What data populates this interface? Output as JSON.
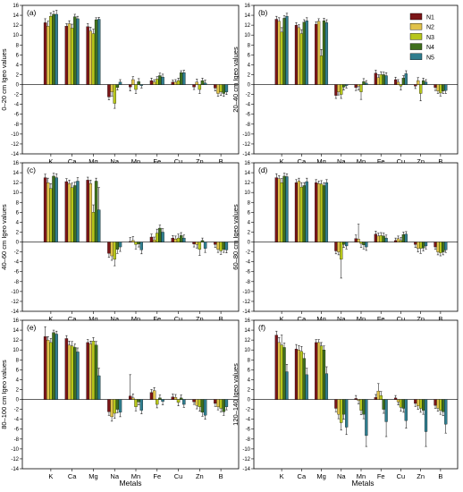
{
  "figure": {
    "xlabel_left": "Metals",
    "xlabel_right": "Metals"
  },
  "legend": {
    "entries": [
      {
        "name": "N1",
        "color": "#7b1518"
      },
      {
        "name": "N2",
        "color": "#e0c24a"
      },
      {
        "name": "N3",
        "color": "#b7c61b"
      },
      {
        "name": "N4",
        "color": "#3f6f1d"
      },
      {
        "name": "N5",
        "color": "#2f7d8e"
      }
    ]
  },
  "chart_data": [
    {
      "type": "bar",
      "panel": "(a)",
      "ylabel": "0–20 cm Igeo values",
      "categories": [
        "K",
        "Ca",
        "Mg",
        "Na",
        "Mn",
        "Fe",
        "Cu",
        "Zn",
        "B"
      ],
      "ylim": [
        -14,
        16
      ],
      "yticks": [
        -14,
        -12,
        -10,
        -8,
        -6,
        -4,
        -2,
        0,
        2,
        4,
        6,
        8,
        10,
        12,
        14,
        16
      ],
      "series": [
        {
          "name": "N1",
          "values": [
            12.5,
            11.8,
            11.7,
            -2.5,
            -0.5,
            0.8,
            0.5,
            -0.5,
            -0.7
          ],
          "errors": [
            0.8,
            0.5,
            0.6,
            0.6,
            0.8,
            0.5,
            0.4,
            0.5,
            0.6
          ]
        },
        {
          "name": "N2",
          "values": [
            11.8,
            12.3,
            10.8,
            -1.5,
            1.0,
            0.5,
            0.5,
            0.5,
            -1.8
          ],
          "errors": [
            1.0,
            0.6,
            0.8,
            0.8,
            0.6,
            0.5,
            0.5,
            0.6,
            0.6
          ]
        },
        {
          "name": "N3",
          "values": [
            13.8,
            11.4,
            10.3,
            -3.8,
            -1.0,
            1.1,
            0.8,
            -1.0,
            -1.5
          ],
          "errors": [
            0.7,
            0.8,
            0.9,
            1.0,
            0.8,
            0.5,
            0.5,
            0.8,
            0.7
          ]
        },
        {
          "name": "N4",
          "values": [
            14.2,
            13.7,
            13.1,
            -0.6,
            0.6,
            1.8,
            2.4,
            0.8,
            -1.8
          ],
          "errors": [
            0.6,
            0.5,
            0.4,
            0.5,
            0.6,
            0.5,
            0.4,
            0.5,
            0.6
          ]
        },
        {
          "name": "N5",
          "values": [
            14.2,
            13.3,
            13.2,
            0.5,
            -0.2,
            1.5,
            2.4,
            0.3,
            -1.5
          ],
          "errors": [
            0.8,
            0.5,
            0.4,
            0.5,
            0.5,
            0.6,
            0.5,
            0.6,
            0.5
          ]
        }
      ]
    },
    {
      "type": "bar",
      "panel": "(b)",
      "ylabel": "20–40 cm Igeo values",
      "categories": [
        "K",
        "Ca",
        "Mg",
        "Na",
        "Mn",
        "Fe",
        "Cu",
        "Zn",
        "B"
      ],
      "ylim": [
        -14,
        16
      ],
      "yticks": [
        -14,
        -12,
        -10,
        -8,
        -6,
        -4,
        -2,
        0,
        2,
        4,
        6,
        8,
        10,
        12,
        14,
        16
      ],
      "series": [
        {
          "name": "N1",
          "values": [
            13.2,
            12.0,
            12.2,
            -2.2,
            -0.6,
            2.3,
            1.0,
            -0.3,
            -0.6
          ],
          "errors": [
            0.6,
            0.5,
            0.5,
            0.6,
            0.6,
            0.6,
            0.5,
            0.5,
            0.6
          ]
        },
        {
          "name": "N2",
          "values": [
            12.8,
            11.5,
            12.8,
            -1.5,
            -0.3,
            1.4,
            0.5,
            0.8,
            -1.3
          ],
          "errors": [
            0.7,
            0.6,
            0.5,
            0.6,
            0.8,
            0.6,
            0.5,
            0.6,
            0.5
          ]
        },
        {
          "name": "N3",
          "values": [
            10.6,
            10.3,
            5.8,
            -2.0,
            -1.5,
            2.0,
            -0.3,
            -1.8,
            -1.7
          ],
          "errors": [
            0.9,
            0.8,
            1.3,
            0.8,
            1.5,
            0.6,
            0.8,
            1.5,
            0.6
          ]
        },
        {
          "name": "N4",
          "values": [
            13.4,
            12.6,
            12.9,
            -0.5,
            0.6,
            2.0,
            1.3,
            0.8,
            -1.3
          ],
          "errors": [
            0.5,
            0.5,
            0.5,
            0.6,
            0.6,
            0.5,
            0.5,
            0.5,
            0.5
          ]
        },
        {
          "name": "N5",
          "values": [
            13.8,
            12.9,
            12.5,
            -0.2,
            0.3,
            1.8,
            2.2,
            0.5,
            -1.2
          ],
          "errors": [
            0.6,
            0.6,
            0.6,
            0.5,
            0.5,
            0.6,
            0.6,
            0.5,
            0.6
          ]
        }
      ]
    },
    {
      "type": "bar",
      "panel": "(c)",
      "ylabel": "40–60 cm Igeo values",
      "categories": [
        "K",
        "Ca",
        "Mg",
        "Na",
        "Mn",
        "Fe",
        "Cu",
        "Zn",
        "B"
      ],
      "ylim": [
        -14,
        16
      ],
      "yticks": [
        -14,
        -12,
        -10,
        -8,
        -6,
        -4,
        -2,
        0,
        2,
        4,
        6,
        8,
        10,
        12,
        14,
        16
      ],
      "series": [
        {
          "name": "N1",
          "values": [
            13.0,
            12.2,
            12.5,
            -2.3,
            0.1,
            1.0,
            0.8,
            -0.4,
            -0.5
          ],
          "errors": [
            0.7,
            0.6,
            0.6,
            0.8,
            0.8,
            0.6,
            0.5,
            0.6,
            0.6
          ]
        },
        {
          "name": "N2",
          "values": [
            12.0,
            11.8,
            11.8,
            -2.8,
            0.3,
            0.4,
            0.6,
            -0.5,
            -1.5
          ],
          "errors": [
            0.9,
            0.7,
            0.7,
            0.9,
            0.8,
            0.6,
            0.6,
            0.7,
            0.6
          ]
        },
        {
          "name": "N3",
          "values": [
            10.8,
            11.0,
            6.0,
            -3.5,
            -0.5,
            1.8,
            0.8,
            -1.5,
            -1.8
          ],
          "errors": [
            1.0,
            0.9,
            1.5,
            1.3,
            0.9,
            0.8,
            0.8,
            1.2,
            0.7
          ]
        },
        {
          "name": "N4",
          "values": [
            13.3,
            11.4,
            12.3,
            -1.5,
            -0.4,
            2.8,
            1.3,
            0.3,
            -1.5
          ],
          "errors": [
            0.6,
            0.7,
            0.6,
            0.8,
            0.6,
            0.6,
            0.6,
            0.5,
            0.6
          ]
        },
        {
          "name": "N5",
          "values": [
            13.0,
            12.3,
            6.5,
            -1.0,
            -1.6,
            2.0,
            0.8,
            -1.3,
            -1.6
          ],
          "errors": [
            0.8,
            0.7,
            4.5,
            0.9,
            0.8,
            0.7,
            0.6,
            0.8,
            0.6
          ]
        }
      ]
    },
    {
      "type": "bar",
      "panel": "(d)",
      "ylabel": "60–80 cm Igeo values",
      "categories": [
        "K",
        "Ca",
        "Mg",
        "Na",
        "Mn",
        "Fe",
        "Cu",
        "Zn",
        "B"
      ],
      "ylim": [
        -14,
        16
      ],
      "yticks": [
        -14,
        -12,
        -10,
        -8,
        -6,
        -4,
        -2,
        0,
        2,
        4,
        6,
        8,
        10,
        12,
        14,
        16
      ],
      "series": [
        {
          "name": "N1",
          "values": [
            13.0,
            12.0,
            12.0,
            -1.8,
            0.7,
            1.6,
            0.3,
            -0.5,
            -1.0
          ],
          "errors": [
            0.8,
            0.6,
            0.6,
            0.6,
            0.7,
            0.6,
            0.5,
            0.6,
            0.5
          ]
        },
        {
          "name": "N2",
          "values": [
            12.8,
            12.3,
            11.8,
            -2.0,
            0.6,
            1.2,
            0.7,
            -1.3,
            -2.0
          ],
          "errors": [
            0.6,
            0.6,
            0.5,
            0.6,
            3.0,
            0.6,
            0.5,
            0.7,
            0.6
          ]
        },
        {
          "name": "N3",
          "values": [
            12.0,
            11.1,
            11.7,
            -3.5,
            -0.3,
            1.3,
            0.3,
            -1.3,
            -2.2
          ],
          "errors": [
            0.8,
            0.9,
            0.7,
            3.8,
            0.8,
            0.6,
            0.6,
            1.0,
            0.6
          ]
        },
        {
          "name": "N4",
          "values": [
            13.3,
            11.4,
            11.4,
            -0.5,
            -0.6,
            1.2,
            1.5,
            -1.2,
            -2.0
          ],
          "errors": [
            0.6,
            0.6,
            0.6,
            0.6,
            0.8,
            0.6,
            0.5,
            0.6,
            0.6
          ]
        },
        {
          "name": "N5",
          "values": [
            13.2,
            12.2,
            12.0,
            -0.8,
            -1.0,
            0.8,
            1.6,
            -0.8,
            -1.6
          ],
          "errors": [
            0.6,
            0.7,
            0.6,
            0.6,
            0.7,
            0.6,
            0.5,
            0.6,
            0.5
          ]
        }
      ]
    },
    {
      "type": "bar",
      "panel": "(e)",
      "ylabel": "80–100 cm Igeo values",
      "categories": [
        "K",
        "Ca",
        "Mg",
        "Na",
        "Mn",
        "Fe",
        "Cu",
        "Zn",
        "B"
      ],
      "ylim": [
        -14,
        16
      ],
      "yticks": [
        -14,
        -12,
        -10,
        -8,
        -6,
        -4,
        -2,
        0,
        2,
        4,
        6,
        8,
        10,
        12,
        14,
        16
      ],
      "series": [
        {
          "name": "N1",
          "values": [
            12.7,
            12.3,
            11.5,
            -2.5,
            0.7,
            1.4,
            0.5,
            -0.5,
            -0.8
          ],
          "errors": [
            2.0,
            0.6,
            0.6,
            0.7,
            4.3,
            0.6,
            0.6,
            0.5,
            0.6
          ]
        },
        {
          "name": "N2",
          "values": [
            12.0,
            11.0,
            11.2,
            -3.5,
            0.3,
            1.8,
            0.4,
            -1.2,
            -1.5
          ],
          "errors": [
            0.7,
            0.8,
            0.6,
            0.9,
            0.8,
            0.6,
            0.6,
            0.7,
            0.6
          ]
        },
        {
          "name": "N3",
          "values": [
            11.5,
            10.8,
            11.8,
            -2.8,
            -1.5,
            -1.0,
            -0.6,
            -1.5,
            -1.8
          ],
          "errors": [
            0.8,
            0.9,
            0.7,
            1.0,
            0.8,
            0.7,
            0.7,
            0.9,
            0.7
          ]
        },
        {
          "name": "N4",
          "values": [
            13.5,
            10.5,
            11.0,
            -2.0,
            -0.5,
            0.3,
            0.3,
            -2.6,
            -2.5
          ],
          "errors": [
            0.5,
            0.7,
            0.7,
            0.7,
            0.6,
            0.6,
            0.6,
            0.8,
            0.7
          ]
        },
        {
          "name": "N5",
          "values": [
            13.2,
            9.6,
            4.8,
            -2.6,
            -2.2,
            -0.4,
            -1.0,
            -3.2,
            -1.5
          ],
          "errors": [
            0.6,
            0.8,
            1.5,
            0.9,
            0.7,
            0.7,
            0.6,
            0.8,
            0.6
          ]
        }
      ]
    },
    {
      "type": "bar",
      "panel": "(f)",
      "ylabel": "120–140 Igeo values",
      "categories": [
        "K",
        "Ca",
        "Mg",
        "Na",
        "Mn",
        "Fe",
        "Cu",
        "Zn",
        "B"
      ],
      "ylim": [
        -14,
        16
      ],
      "yticks": [
        -14,
        -12,
        -10,
        -8,
        -6,
        -4,
        -2,
        0,
        2,
        4,
        6,
        8,
        10,
        12,
        14,
        16
      ],
      "series": [
        {
          "name": "N1",
          "values": [
            13.0,
            10.2,
            11.5,
            -1.8,
            0.2,
            0.4,
            0.3,
            -0.8,
            -1.2
          ],
          "errors": [
            0.8,
            0.9,
            0.6,
            0.7,
            0.6,
            0.6,
            0.5,
            0.6,
            0.6
          ]
        },
        {
          "name": "N2",
          "values": [
            11.5,
            10.0,
            11.5,
            -3.0,
            -0.2,
            1.7,
            -0.5,
            -1.3,
            -1.8
          ],
          "errors": [
            1.0,
            0.9,
            0.6,
            0.9,
            0.7,
            1.5,
            0.6,
            0.7,
            0.6
          ]
        },
        {
          "name": "N3",
          "values": [
            11.0,
            9.7,
            10.8,
            -4.7,
            -2.2,
            0.8,
            -1.6,
            -1.8,
            -2.2
          ],
          "errors": [
            2.0,
            1.0,
            0.7,
            1.5,
            0.9,
            0.8,
            0.8,
            0.8,
            0.8
          ]
        },
        {
          "name": "N4",
          "values": [
            10.5,
            8.3,
            10.0,
            -3.0,
            -3.0,
            -2.0,
            -1.8,
            -2.2,
            -2.5
          ],
          "errors": [
            0.9,
            1.0,
            0.8,
            1.0,
            0.9,
            0.8,
            0.8,
            0.8,
            0.8
          ]
        },
        {
          "name": "N5",
          "values": [
            5.6,
            5.0,
            5.2,
            -5.6,
            -7.3,
            -4.5,
            -4.3,
            -6.5,
            -5.0
          ],
          "errors": [
            1.5,
            1.3,
            1.4,
            1.5,
            2.2,
            3.0,
            1.5,
            3.0,
            1.8
          ]
        }
      ]
    }
  ]
}
